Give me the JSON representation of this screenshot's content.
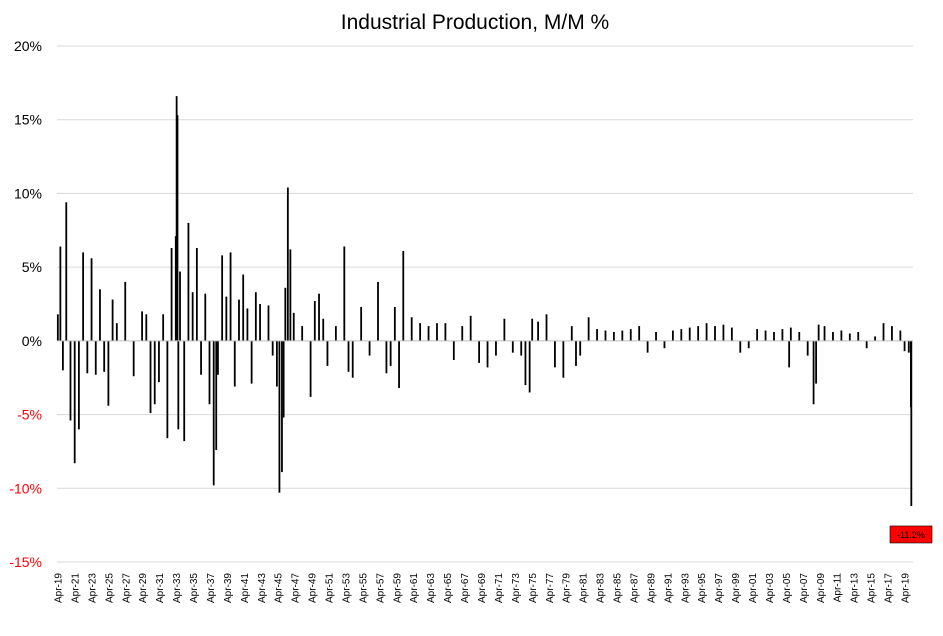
{
  "chart_data": {
    "type": "bar",
    "title": "Industrial Production, M/M %",
    "xlabel": "",
    "ylabel": "",
    "ylim": [
      -15,
      20
    ],
    "y_ticks": [
      {
        "value": 20,
        "label": "20%"
      },
      {
        "value": 15,
        "label": "15%"
      },
      {
        "value": 10,
        "label": "10%"
      },
      {
        "value": 5,
        "label": "5%"
      },
      {
        "value": 0,
        "label": "0%"
      },
      {
        "value": -5,
        "label": "-5%"
      },
      {
        "value": -10,
        "label": "-10%"
      },
      {
        "value": -15,
        "label": "-15%"
      }
    ],
    "x_tick_labels": [
      "Apr-19",
      "Apr-21",
      "Apr-23",
      "Apr-25",
      "Apr-27",
      "Apr-29",
      "Apr-31",
      "Apr-33",
      "Apr-35",
      "Apr-37",
      "Apr-39",
      "Apr-41",
      "Apr-43",
      "Apr-45",
      "Apr-47",
      "Apr-49",
      "Apr-51",
      "Apr-53",
      "Apr-55",
      "Apr-57",
      "Apr-59",
      "Apr-61",
      "Apr-63",
      "Apr-65",
      "Apr-67",
      "Apr-69",
      "Apr-71",
      "Apr-73",
      "Apr-75",
      "Apr-77",
      "Apr-79",
      "Apr-81",
      "Apr-83",
      "Apr-85",
      "Apr-87",
      "Apr-89",
      "Apr-91",
      "Apr-93",
      "Apr-95",
      "Apr-97",
      "Apr-99",
      "Apr-01",
      "Apr-03",
      "Apr-05",
      "Apr-07",
      "Apr-09",
      "Apr-11",
      "Apr-13",
      "Apr-15",
      "Apr-17",
      "Apr-19"
    ],
    "series": [
      {
        "name": "Industrial Production M/M %",
        "x": [
          1919,
          1919.3,
          1919.6,
          1920,
          1920.5,
          1921,
          1921.5,
          1922,
          1922.5,
          1923,
          1923.5,
          1924,
          1924.5,
          1925,
          1925.5,
          1926,
          1927,
          1928,
          1929,
          1929.5,
          1930,
          1930.5,
          1931,
          1931.5,
          1932,
          1932.5,
          1933,
          1933.1,
          1933.2,
          1933.3,
          1933.5,
          1934,
          1934.5,
          1935,
          1935.5,
          1936,
          1936.5,
          1937,
          1937.5,
          1937.8,
          1938,
          1938.5,
          1939,
          1939.5,
          1940,
          1940.5,
          1941,
          1941.5,
          1942,
          1942.5,
          1943,
          1944,
          1944.5,
          1945,
          1945.3,
          1945.6,
          1945.8,
          1946,
          1946.3,
          1946.6,
          1947,
          1948,
          1949,
          1949.5,
          1950,
          1950.5,
          1951,
          1952,
          1953,
          1953.5,
          1954,
          1955,
          1956,
          1957,
          1958,
          1958.5,
          1959,
          1959.5,
          1960,
          1961,
          1962,
          1963,
          1964,
          1965,
          1966,
          1967,
          1968,
          1969,
          1970,
          1971,
          1972,
          1973,
          1974,
          1974.5,
          1975,
          1975.3,
          1976,
          1977,
          1978,
          1979,
          1980,
          1980.5,
          1981,
          1982,
          1983,
          1984,
          1985,
          1986,
          1987,
          1988,
          1989,
          1990,
          1991,
          1992,
          1993,
          1994,
          1995,
          1996,
          1997,
          1998,
          1999,
          2000,
          2001,
          2002,
          2003,
          2004,
          2005,
          2005.8,
          2006,
          2007,
          2008,
          2008.7,
          2009,
          2009.3,
          2010,
          2011,
          2012,
          2013,
          2014,
          2015,
          2016,
          2017,
          2018,
          2019,
          2019.5,
          2020,
          2020.25,
          2020.3
        ],
        "values": [
          1.8,
          6.4,
          -2.0,
          9.4,
          -5.4,
          -8.3,
          -6.0,
          6.0,
          -2.2,
          5.6,
          -2.3,
          3.5,
          -2.1,
          -4.4,
          2.8,
          1.2,
          4.0,
          -2.4,
          2.0,
          1.8,
          -4.9,
          -4.3,
          -2.8,
          1.8,
          -6.6,
          6.3,
          7.1,
          16.6,
          15.3,
          -6.0,
          4.7,
          -6.8,
          8.0,
          3.3,
          6.3,
          -2.3,
          3.2,
          -4.3,
          -9.8,
          -7.4,
          -2.3,
          5.8,
          3.0,
          6.0,
          -3.1,
          2.8,
          4.5,
          2.2,
          -2.9,
          3.3,
          2.5,
          2.4,
          -1.0,
          -3.1,
          -10.3,
          -8.9,
          -5.2,
          3.6,
          10.4,
          6.2,
          1.9,
          1.0,
          -3.8,
          2.7,
          3.2,
          1.5,
          -1.7,
          1.0,
          6.4,
          -2.1,
          -2.5,
          2.3,
          -1.0,
          4.0,
          -2.2,
          -1.7,
          2.3,
          -3.2,
          6.1,
          1.6,
          1.2,
          1.0,
          1.2,
          1.2,
          -1.3,
          1.0,
          1.7,
          -1.5,
          -1.8,
          -1.0,
          1.5,
          -0.8,
          -1.0,
          -3.0,
          -3.5,
          1.5,
          1.3,
          1.8,
          -1.8,
          -2.5,
          1.0,
          -1.7,
          -1.0,
          1.6,
          0.8,
          0.7,
          0.6,
          0.7,
          0.8,
          1.0,
          -0.8,
          0.6,
          -0.5,
          0.7,
          0.8,
          0.9,
          1.0,
          1.2,
          1.0,
          1.1,
          0.9,
          -0.8,
          -0.5,
          0.8,
          0.7,
          0.6,
          0.8,
          -1.8,
          0.9,
          0.6,
          -1.0,
          -4.3,
          -2.9,
          1.1,
          1.0,
          0.6,
          0.7,
          0.5,
          0.6,
          -0.5,
          0.3,
          1.2,
          1.0,
          0.7,
          -0.7,
          -0.8,
          -4.5,
          -11.2
        ]
      }
    ],
    "annotation": {
      "label": "-11.2%",
      "target_value": -11.2,
      "background": "#ff0000"
    },
    "colors": {
      "bars": "#000000",
      "grid": "#d9d9d9",
      "axis": "#bfbfbf",
      "negative_tick": "#ff0000",
      "positive_tick": "#000000"
    },
    "x_domain": [
      1918.9,
      2020.5
    ]
  }
}
